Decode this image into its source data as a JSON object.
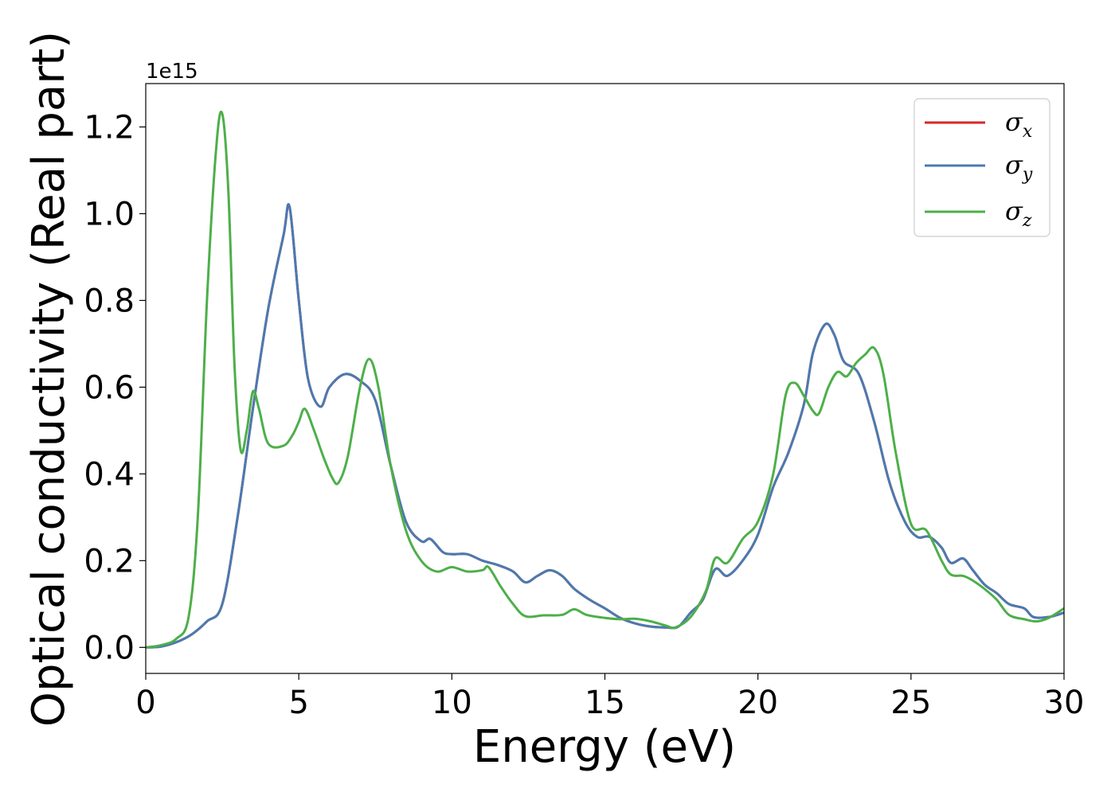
{
  "chart_data": {
    "type": "line",
    "xlabel": "Energy (eV)",
    "ylabel": "Optical conductivity (Real part)",
    "y_offset_text": "1e15",
    "xlim": [
      0,
      30
    ],
    "ylim": [
      -0.06,
      1.3
    ],
    "y_scale_factor": 1000000000000000.0,
    "xticks": [
      0,
      5,
      10,
      15,
      20,
      25,
      30
    ],
    "xtick_labels": [
      "0",
      "5",
      "10",
      "15",
      "20",
      "25",
      "30"
    ],
    "yticks": [
      0.0,
      0.2,
      0.4,
      0.6,
      0.8,
      1.0,
      1.2
    ],
    "ytick_labels": [
      "0.0",
      "0.2",
      "0.4",
      "0.6",
      "0.8",
      "1.0",
      "1.2"
    ],
    "grid": false,
    "legend_position": "top-right",
    "series": [
      {
        "name": "σx",
        "symbol": "σ",
        "subscript": "x",
        "color": "#d62728",
        "points": [
          [
            0,
            0
          ],
          [
            0.5,
            0.002
          ],
          [
            1.0,
            0.012
          ],
          [
            1.5,
            0.03
          ],
          [
            2.0,
            0.06
          ],
          [
            2.5,
            0.1
          ],
          [
            3.0,
            0.3
          ],
          [
            3.5,
            0.55
          ],
          [
            4.0,
            0.78
          ],
          [
            4.5,
            0.95
          ],
          [
            4.7,
            1.015
          ],
          [
            5.0,
            0.8
          ],
          [
            5.3,
            0.62
          ],
          [
            5.7,
            0.555
          ],
          [
            6.0,
            0.6
          ],
          [
            6.5,
            0.63
          ],
          [
            7.0,
            0.615
          ],
          [
            7.5,
            0.57
          ],
          [
            8.0,
            0.42
          ],
          [
            8.5,
            0.29
          ],
          [
            9.0,
            0.245
          ],
          [
            9.3,
            0.25
          ],
          [
            9.7,
            0.22
          ],
          [
            10.0,
            0.215
          ],
          [
            10.5,
            0.215
          ],
          [
            11.0,
            0.2
          ],
          [
            11.5,
            0.19
          ],
          [
            12.0,
            0.175
          ],
          [
            12.4,
            0.15
          ],
          [
            12.8,
            0.165
          ],
          [
            13.2,
            0.178
          ],
          [
            13.6,
            0.165
          ],
          [
            14.0,
            0.135
          ],
          [
            14.5,
            0.11
          ],
          [
            15.0,
            0.09
          ],
          [
            15.5,
            0.068
          ],
          [
            16.0,
            0.055
          ],
          [
            16.5,
            0.048
          ],
          [
            17.0,
            0.046
          ],
          [
            17.4,
            0.048
          ],
          [
            17.8,
            0.08
          ],
          [
            18.2,
            0.11
          ],
          [
            18.6,
            0.18
          ],
          [
            19.0,
            0.165
          ],
          [
            19.5,
            0.2
          ],
          [
            20.0,
            0.26
          ],
          [
            20.5,
            0.37
          ],
          [
            21.0,
            0.45
          ],
          [
            21.5,
            0.56
          ],
          [
            21.8,
            0.68
          ],
          [
            22.2,
            0.745
          ],
          [
            22.5,
            0.72
          ],
          [
            22.8,
            0.66
          ],
          [
            23.3,
            0.63
          ],
          [
            23.8,
            0.52
          ],
          [
            24.3,
            0.38
          ],
          [
            24.8,
            0.29
          ],
          [
            25.2,
            0.255
          ],
          [
            25.6,
            0.255
          ],
          [
            26.0,
            0.23
          ],
          [
            26.3,
            0.195
          ],
          [
            26.7,
            0.205
          ],
          [
            27.0,
            0.18
          ],
          [
            27.4,
            0.145
          ],
          [
            27.8,
            0.125
          ],
          [
            28.2,
            0.1
          ],
          [
            28.7,
            0.09
          ],
          [
            29.0,
            0.07
          ],
          [
            29.5,
            0.07
          ],
          [
            30.0,
            0.08
          ]
        ]
      },
      {
        "name": "σy",
        "symbol": "σ",
        "subscript": "y",
        "color": "#4a7ab0",
        "points": [
          [
            0,
            0
          ],
          [
            0.5,
            0.002
          ],
          [
            1.0,
            0.012
          ],
          [
            1.5,
            0.03
          ],
          [
            2.0,
            0.06
          ],
          [
            2.5,
            0.1
          ],
          [
            3.0,
            0.3
          ],
          [
            3.5,
            0.55
          ],
          [
            4.0,
            0.78
          ],
          [
            4.5,
            0.95
          ],
          [
            4.7,
            1.015
          ],
          [
            5.0,
            0.8
          ],
          [
            5.3,
            0.62
          ],
          [
            5.7,
            0.555
          ],
          [
            6.0,
            0.6
          ],
          [
            6.5,
            0.63
          ],
          [
            7.0,
            0.615
          ],
          [
            7.5,
            0.57
          ],
          [
            8.0,
            0.42
          ],
          [
            8.5,
            0.29
          ],
          [
            9.0,
            0.245
          ],
          [
            9.3,
            0.25
          ],
          [
            9.7,
            0.22
          ],
          [
            10.0,
            0.215
          ],
          [
            10.5,
            0.215
          ],
          [
            11.0,
            0.2
          ],
          [
            11.5,
            0.19
          ],
          [
            12.0,
            0.175
          ],
          [
            12.4,
            0.15
          ],
          [
            12.8,
            0.165
          ],
          [
            13.2,
            0.178
          ],
          [
            13.6,
            0.165
          ],
          [
            14.0,
            0.135
          ],
          [
            14.5,
            0.11
          ],
          [
            15.0,
            0.09
          ],
          [
            15.5,
            0.068
          ],
          [
            16.0,
            0.055
          ],
          [
            16.5,
            0.048
          ],
          [
            17.0,
            0.046
          ],
          [
            17.4,
            0.048
          ],
          [
            17.8,
            0.08
          ],
          [
            18.2,
            0.11
          ],
          [
            18.6,
            0.18
          ],
          [
            19.0,
            0.165
          ],
          [
            19.5,
            0.2
          ],
          [
            20.0,
            0.26
          ],
          [
            20.5,
            0.37
          ],
          [
            21.0,
            0.45
          ],
          [
            21.5,
            0.56
          ],
          [
            21.8,
            0.68
          ],
          [
            22.2,
            0.745
          ],
          [
            22.5,
            0.72
          ],
          [
            22.8,
            0.66
          ],
          [
            23.3,
            0.63
          ],
          [
            23.8,
            0.52
          ],
          [
            24.3,
            0.38
          ],
          [
            24.8,
            0.29
          ],
          [
            25.2,
            0.255
          ],
          [
            25.6,
            0.255
          ],
          [
            26.0,
            0.23
          ],
          [
            26.3,
            0.195
          ],
          [
            26.7,
            0.205
          ],
          [
            27.0,
            0.18
          ],
          [
            27.4,
            0.145
          ],
          [
            27.8,
            0.125
          ],
          [
            28.2,
            0.1
          ],
          [
            28.7,
            0.09
          ],
          [
            29.0,
            0.07
          ],
          [
            29.5,
            0.07
          ],
          [
            30.0,
            0.08
          ]
        ]
      },
      {
        "name": "σz",
        "symbol": "σ",
        "subscript": "z",
        "color": "#4daf4a",
        "points": [
          [
            0,
            0
          ],
          [
            0.5,
            0.005
          ],
          [
            1.0,
            0.02
          ],
          [
            1.4,
            0.07
          ],
          [
            1.7,
            0.3
          ],
          [
            2.0,
            0.8
          ],
          [
            2.3,
            1.15
          ],
          [
            2.5,
            1.23
          ],
          [
            2.7,
            1.05
          ],
          [
            2.9,
            0.65
          ],
          [
            3.1,
            0.455
          ],
          [
            3.3,
            0.5
          ],
          [
            3.5,
            0.59
          ],
          [
            3.7,
            0.55
          ],
          [
            4.0,
            0.47
          ],
          [
            4.5,
            0.465
          ],
          [
            4.8,
            0.49
          ],
          [
            5.0,
            0.52
          ],
          [
            5.2,
            0.55
          ],
          [
            5.5,
            0.5
          ],
          [
            5.8,
            0.44
          ],
          [
            6.1,
            0.39
          ],
          [
            6.3,
            0.38
          ],
          [
            6.6,
            0.44
          ],
          [
            7.0,
            0.6
          ],
          [
            7.3,
            0.665
          ],
          [
            7.6,
            0.6
          ],
          [
            8.0,
            0.42
          ],
          [
            8.5,
            0.27
          ],
          [
            9.0,
            0.2
          ],
          [
            9.5,
            0.175
          ],
          [
            10.0,
            0.185
          ],
          [
            10.5,
            0.175
          ],
          [
            11.0,
            0.178
          ],
          [
            11.2,
            0.185
          ],
          [
            11.6,
            0.14
          ],
          [
            12.0,
            0.1
          ],
          [
            12.4,
            0.072
          ],
          [
            13.0,
            0.074
          ],
          [
            13.6,
            0.075
          ],
          [
            14.0,
            0.088
          ],
          [
            14.4,
            0.075
          ],
          [
            15.0,
            0.068
          ],
          [
            15.5,
            0.065
          ],
          [
            16.0,
            0.066
          ],
          [
            16.5,
            0.06
          ],
          [
            17.0,
            0.05
          ],
          [
            17.3,
            0.046
          ],
          [
            17.8,
            0.07
          ],
          [
            18.3,
            0.13
          ],
          [
            18.6,
            0.205
          ],
          [
            19.0,
            0.195
          ],
          [
            19.5,
            0.25
          ],
          [
            20.0,
            0.29
          ],
          [
            20.5,
            0.4
          ],
          [
            20.9,
            0.58
          ],
          [
            21.2,
            0.61
          ],
          [
            21.5,
            0.58
          ],
          [
            21.8,
            0.545
          ],
          [
            22.0,
            0.54
          ],
          [
            22.3,
            0.6
          ],
          [
            22.6,
            0.635
          ],
          [
            22.9,
            0.625
          ],
          [
            23.2,
            0.655
          ],
          [
            23.5,
            0.675
          ],
          [
            23.8,
            0.69
          ],
          [
            24.1,
            0.63
          ],
          [
            24.5,
            0.45
          ],
          [
            25.0,
            0.285
          ],
          [
            25.5,
            0.27
          ],
          [
            26.0,
            0.2
          ],
          [
            26.3,
            0.168
          ],
          [
            26.7,
            0.165
          ],
          [
            27.0,
            0.155
          ],
          [
            27.4,
            0.135
          ],
          [
            27.8,
            0.11
          ],
          [
            28.2,
            0.075
          ],
          [
            28.7,
            0.065
          ],
          [
            29.1,
            0.06
          ],
          [
            29.5,
            0.068
          ],
          [
            30.0,
            0.09
          ]
        ]
      }
    ]
  }
}
